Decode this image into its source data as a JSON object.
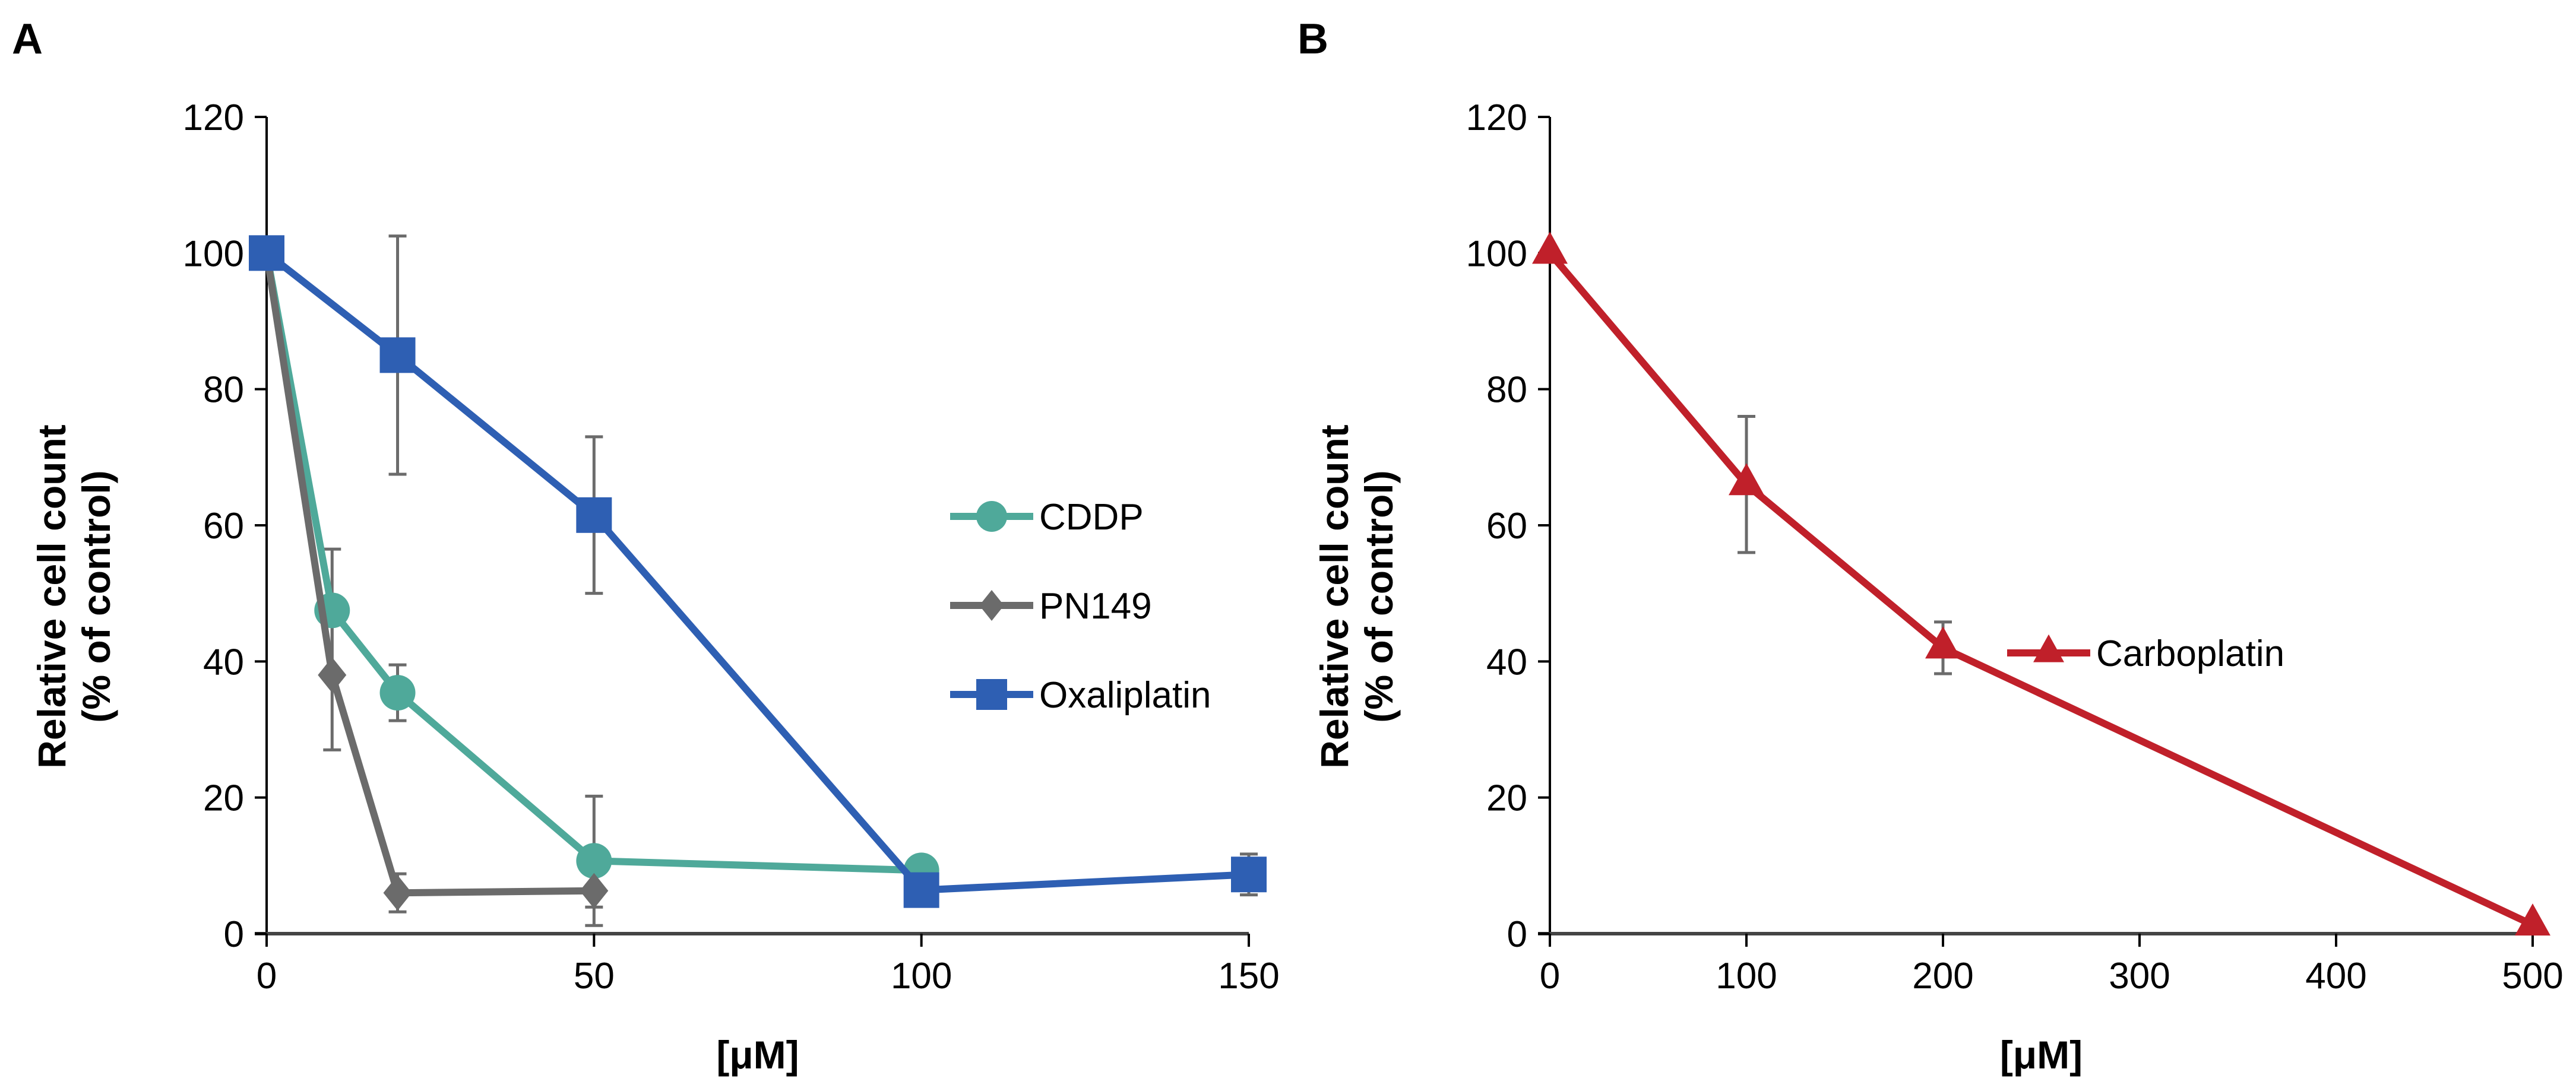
{
  "chart_data": [
    {
      "panel_label": "A",
      "type": "line",
      "xlabel": "[μM]",
      "ylabel": [
        "Relative cell count",
        "(% of control)"
      ],
      "xlim": [
        0,
        150
      ],
      "ylim": [
        0,
        120
      ],
      "xticks": [
        0,
        50,
        100,
        150
      ],
      "yticks": [
        0,
        20,
        40,
        60,
        80,
        100,
        120
      ],
      "legend_position": "right",
      "series": [
        {
          "name": "CDDP",
          "color": "#4fa99a",
          "marker": "circle",
          "x": [
            0,
            10,
            20,
            50,
            100
          ],
          "y": [
            100,
            47.5,
            35.4,
            10.7,
            9.3
          ],
          "err": [
            0,
            9,
            4.1,
            9.5,
            0
          ]
        },
        {
          "name": "PN149",
          "color": "#6b6b6b",
          "marker": "diamond",
          "x": [
            0,
            10,
            20,
            50
          ],
          "y": [
            100,
            38,
            6,
            6.3
          ],
          "err": [
            0,
            11,
            2.8,
            2.4
          ]
        },
        {
          "name": "Oxaliplatin",
          "color": "#2e5fb3",
          "marker": "square",
          "x": [
            0,
            20,
            50,
            100,
            150
          ],
          "y": [
            100,
            85,
            61.5,
            6.4,
            8.7
          ],
          "err": [
            0,
            17.5,
            11.5,
            0,
            3
          ]
        }
      ]
    },
    {
      "panel_label": "B",
      "type": "line",
      "xlabel": "[μM]",
      "ylabel": [
        "Relative cell count",
        "(% of control)"
      ],
      "xlim": [
        0,
        500
      ],
      "ylim": [
        0,
        120
      ],
      "xticks": [
        0,
        100,
        200,
        300,
        400,
        500
      ],
      "yticks": [
        0,
        20,
        40,
        60,
        80,
        100,
        120
      ],
      "legend_position": "right",
      "series": [
        {
          "name": "Carboplatin",
          "color": "#c0202a",
          "marker": "triangle",
          "x": [
            0,
            100,
            200,
            500
          ],
          "y": [
            100,
            66,
            42,
            1.3
          ],
          "err": [
            0,
            10,
            3.8,
            0
          ]
        }
      ]
    }
  ]
}
